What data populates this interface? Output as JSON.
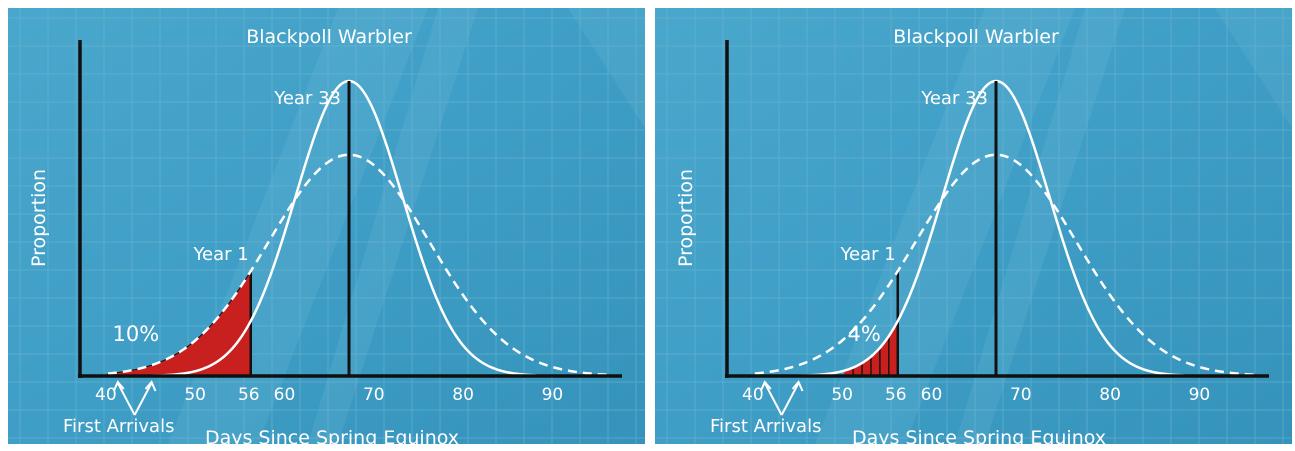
{
  "chart_data": [
    {
      "type": "line",
      "title": "Blackpoll Warbler",
      "xlabel": "Days Since Spring Equinox",
      "ylabel": "Proportion",
      "x_ticks": [
        40,
        50,
        56,
        60,
        70,
        80,
        90
      ],
      "xlim": [
        38,
        96
      ],
      "ylim": [
        0,
        1
      ],
      "grid": true,
      "series": [
        {
          "name": "Year 33",
          "line": "solid",
          "peak_day": 67,
          "sd": 6,
          "peak": 1.0,
          "x_start": 45,
          "x_end": 88
        },
        {
          "name": "Year 1",
          "line": "dashed",
          "peak_day": 67,
          "sd": 9,
          "peak": 0.75,
          "x_start": 40,
          "x_end": 96
        }
      ],
      "shaded_region": {
        "x_from": 40,
        "x_to": 56,
        "label": "10%",
        "style": "solid",
        "color": "#c8201f"
      },
      "annotations": {
        "first_arrivals": "First Arrivals",
        "first_arrival_days": [
          41,
          45
        ]
      }
    },
    {
      "type": "line",
      "title": "Blackpoll Warbler",
      "xlabel": "Days Since Spring Equinox",
      "ylabel": "Proportion",
      "x_ticks": [
        40,
        50,
        56,
        60,
        70,
        80,
        90
      ],
      "xlim": [
        38,
        96
      ],
      "ylim": [
        0,
        1
      ],
      "grid": true,
      "series": [
        {
          "name": "Year 33",
          "line": "solid",
          "peak_day": 67,
          "sd": 6,
          "peak": 1.0,
          "x_start": 45,
          "x_end": 88
        },
        {
          "name": "Year 1",
          "line": "dashed",
          "peak_day": 67,
          "sd": 9,
          "peak": 0.75,
          "x_start": 40,
          "x_end": 96
        }
      ],
      "shaded_region": {
        "x_from": 50,
        "x_to": 56,
        "label": "4%",
        "style": "striped",
        "color": "#c8201f"
      },
      "annotations": {
        "first_arrivals": "First Arrivals",
        "first_arrival_days": [
          41,
          45
        ]
      }
    }
  ],
  "colors": {
    "background": "#3f9ec6",
    "background_light": "#7cc3de",
    "grid": "#6fb6d3",
    "curve": "#ffffff",
    "axis": "#101010",
    "fill": "#c8201f"
  }
}
